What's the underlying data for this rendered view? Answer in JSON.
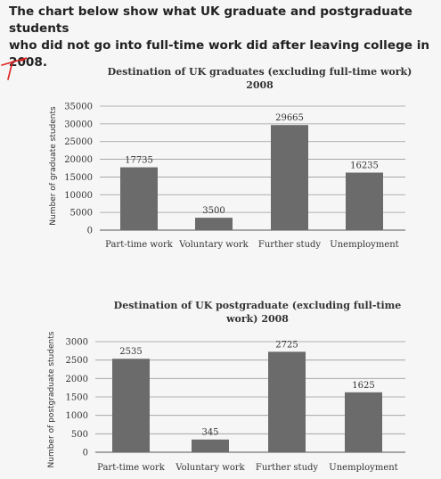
{
  "header": {
    "line1": "The chart below show what UK graduate and postgraduate students",
    "line2": "who did not go into full-time work did after leaving college in 2008."
  },
  "chart_data": [
    {
      "type": "bar",
      "title_lines": [
        "Destination of UK graduates (excluding full-time work)",
        "2008"
      ],
      "ylabel": "Number of graduate students",
      "xlabel": "",
      "categories": [
        "Part-time work",
        "Voluntary work",
        "Further study",
        "Unemployment"
      ],
      "values": [
        17735,
        3500,
        29665,
        16235
      ],
      "value_labels": [
        "17735",
        "3500",
        "29665",
        "16235"
      ],
      "ylim": [
        0,
        35000
      ],
      "yticks": [
        0,
        5000,
        10000,
        15000,
        20000,
        25000,
        30000,
        35000
      ],
      "ytick_labels": [
        "0",
        "5000",
        "10000",
        "15000",
        "20000",
        "25000",
        "30000",
        "35000"
      ],
      "grid": true,
      "bar_color": "#6b6b6b"
    },
    {
      "type": "bar",
      "title_lines": [
        "Destination of UK postgraduate (excluding full-time",
        "work) 2008"
      ],
      "ylabel": "Number of postgraduate students",
      "xlabel": "",
      "categories": [
        "Part-time work",
        "Voluntary work",
        "Further study",
        "Unemployment"
      ],
      "values": [
        2535,
        345,
        2725,
        1625
      ],
      "value_labels": [
        "2535",
        "345",
        "2725",
        "1625"
      ],
      "ylim": [
        0,
        3000
      ],
      "yticks": [
        0,
        500,
        1000,
        1500,
        2000,
        2500,
        3000
      ],
      "ytick_labels": [
        "0",
        "500",
        "1000",
        "1500",
        "2000",
        "2500",
        "3000"
      ],
      "grid": true,
      "bar_color": "#6b6b6b"
    }
  ]
}
